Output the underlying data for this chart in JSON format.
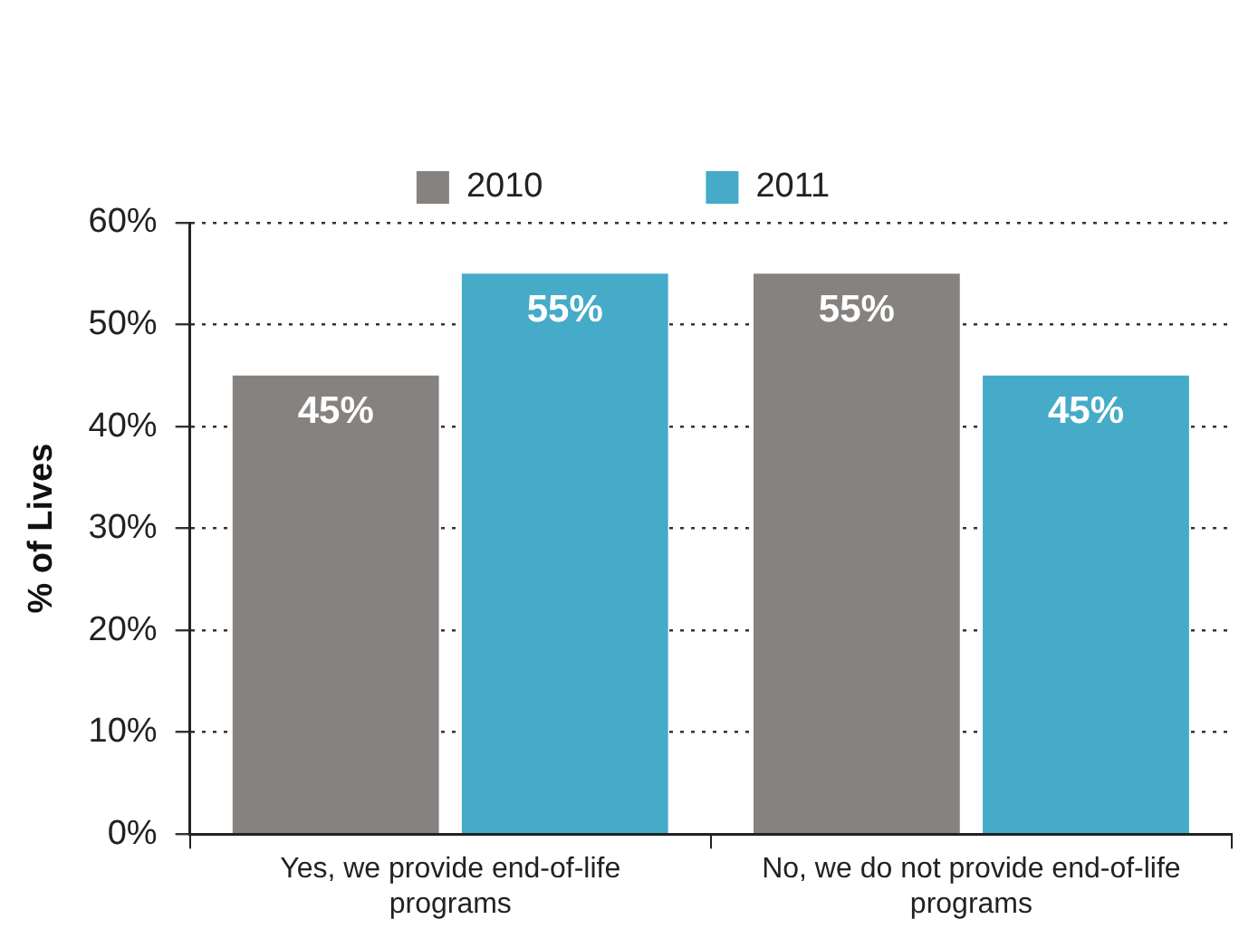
{
  "chart_data": {
    "type": "bar",
    "ylabel": "% of Lives",
    "categories": [
      "Yes, we provide end-of-life programs",
      "No, we do not provide end-of-life programs"
    ],
    "series": [
      {
        "name": "2010",
        "color": "#858280",
        "values": [
          45,
          55
        ],
        "value_labels": [
          "45%",
          "55%"
        ]
      },
      {
        "name": "2011",
        "color": "#45abc8",
        "values": [
          55,
          45
        ],
        "value_labels": [
          "55%",
          "45%"
        ]
      }
    ],
    "ylim": [
      0,
      60
    ],
    "yticks": [
      {
        "value": 0,
        "label": "0%"
      },
      {
        "value": 10,
        "label": "10%"
      },
      {
        "value": 20,
        "label": "20%"
      },
      {
        "value": 30,
        "label": "30%"
      },
      {
        "value": 40,
        "label": "40%"
      },
      {
        "value": 50,
        "label": "50%"
      },
      {
        "value": 60,
        "label": "60%"
      }
    ],
    "grid": "y",
    "legend": "top"
  }
}
